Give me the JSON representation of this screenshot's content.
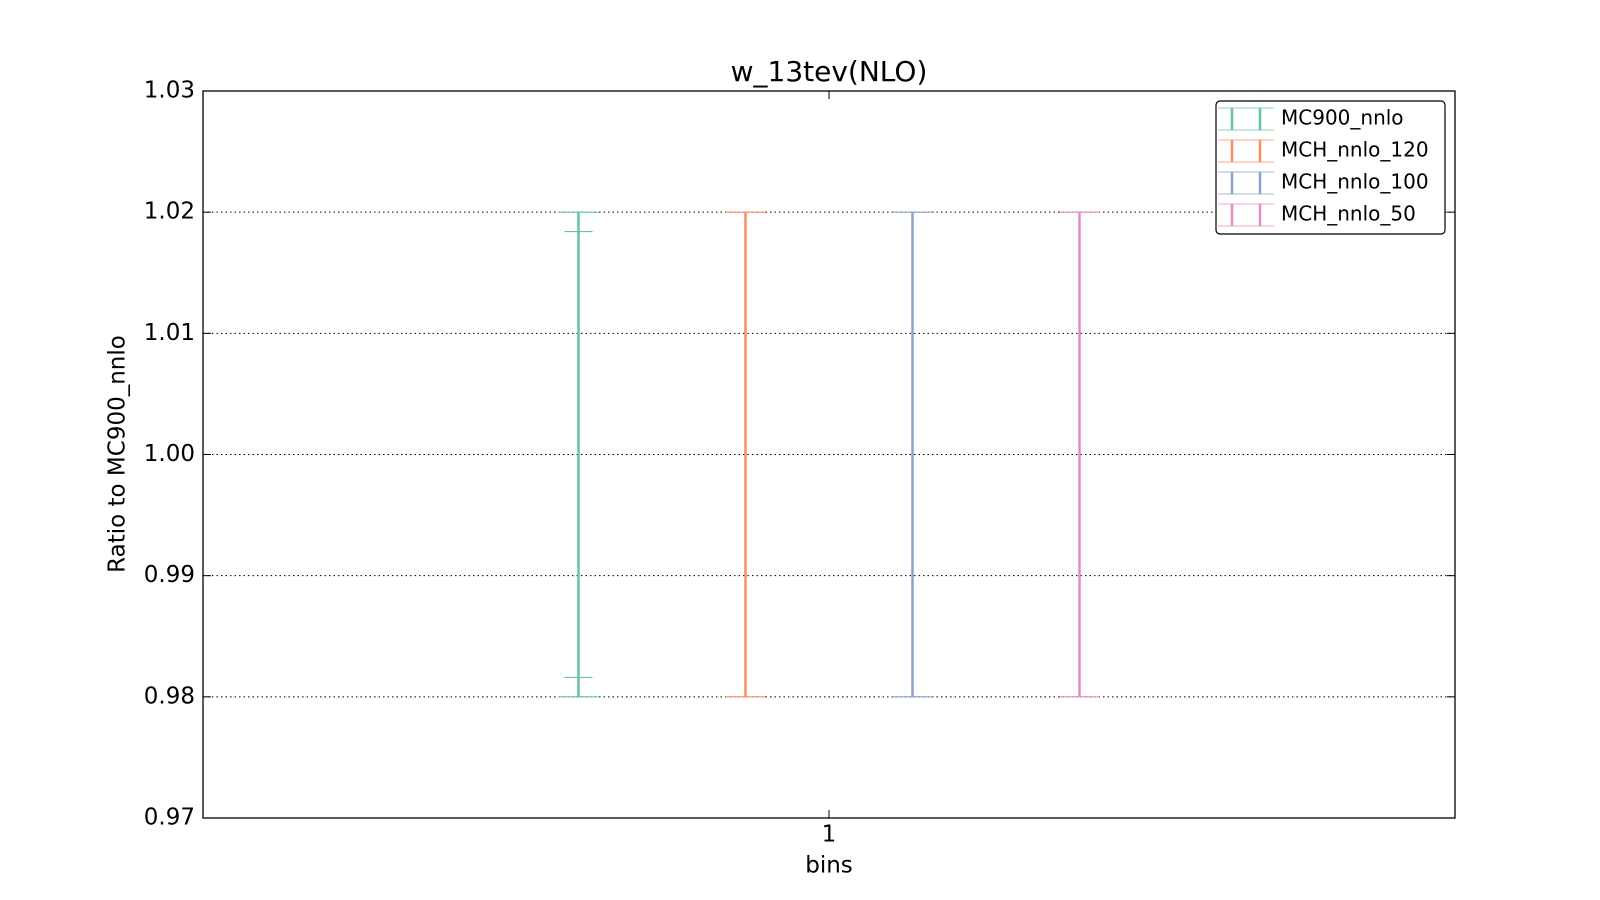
{
  "chart_data": {
    "type": "errorbar",
    "title": "w_13tev(NLO)",
    "x_label": "bins",
    "y_label": "Ratio to MC900_nnlo",
    "categories": [
      "1"
    ],
    "series": [
      {
        "name": "MC900_nnlo",
        "color": "#66c2a5",
        "low": [
          0.98
        ],
        "high": [
          1.02
        ],
        "inner_low": [
          0.9816
        ],
        "inner_high": [
          1.0184
        ]
      },
      {
        "name": "MCH_nnlo_120",
        "color": "#fc8d62",
        "low": [
          0.98
        ],
        "high": [
          1.02
        ]
      },
      {
        "name": "MCH_nnlo_100",
        "color": "#8da0cb",
        "low": [
          0.98
        ],
        "high": [
          1.02
        ]
      },
      {
        "name": "MCH_nnlo_50",
        "color": "#e78ac3",
        "low": [
          0.98
        ],
        "high": [
          1.02
        ]
      }
    ],
    "ylim": [
      0.97,
      1.03
    ],
    "yticks": [
      0.97,
      0.98,
      0.99,
      {
        "value": 1,
        "label": "1.00"
      },
      1.01,
      1.02,
      1.03
    ],
    "grid": true,
    "legend": "upper right"
  }
}
